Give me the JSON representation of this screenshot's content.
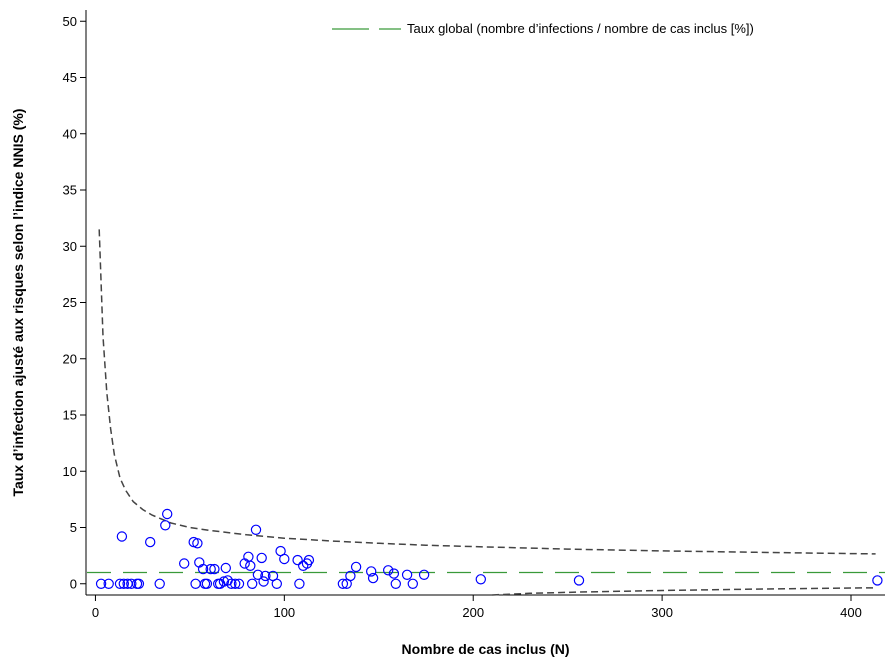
{
  "chart_data": {
    "type": "scatter",
    "title": "",
    "xlabel": "Nombre de cas inclus (N)",
    "ylabel": "Taux d’infection ajusté aux risques selon l’indice NNIS (%)",
    "xlim": [
      -5,
      418
    ],
    "ylim": [
      -1,
      51
    ],
    "xticks": [
      0,
      100,
      200,
      300,
      400
    ],
    "yticks": [
      0,
      5,
      10,
      15,
      20,
      25,
      30,
      35,
      40,
      45,
      50
    ],
    "grid": false,
    "legend_position": "top-right",
    "overall_rate": 1.0,
    "overall_rate_label": "Taux global (nombre d’infections / nombre de cas inclus [%])",
    "colors": {
      "points": "#0000ff",
      "overall": "#3a9a3a",
      "limits": "#444444",
      "axis": "#000000"
    },
    "upper_limit": [
      [
        2,
        31.5
      ],
      [
        4,
        22
      ],
      [
        6,
        17
      ],
      [
        8,
        13.8
      ],
      [
        10,
        11.5
      ],
      [
        13,
        9.4
      ],
      [
        16,
        8.3
      ],
      [
        20,
        7.3
      ],
      [
        25,
        6.6
      ],
      [
        30,
        6.1
      ],
      [
        40,
        5.4
      ],
      [
        50,
        5.0
      ],
      [
        60,
        4.75
      ],
      [
        80,
        4.35
      ],
      [
        100,
        4.05
      ],
      [
        125,
        3.8
      ],
      [
        150,
        3.6
      ],
      [
        175,
        3.43
      ],
      [
        200,
        3.3
      ],
      [
        250,
        3.08
      ],
      [
        300,
        2.92
      ],
      [
        350,
        2.8
      ],
      [
        400,
        2.68
      ],
      [
        413,
        2.65
      ]
    ],
    "lower_limit": [
      [
        210,
        -1
      ],
      [
        230,
        -0.85
      ],
      [
        260,
        -0.72
      ],
      [
        300,
        -0.6
      ],
      [
        350,
        -0.48
      ],
      [
        400,
        -0.38
      ],
      [
        413,
        -0.36
      ]
    ],
    "points": [
      [
        3,
        0
      ],
      [
        7,
        0
      ],
      [
        13,
        0
      ],
      [
        14,
        4.2
      ],
      [
        15,
        0
      ],
      [
        17,
        0
      ],
      [
        19,
        0
      ],
      [
        22,
        0
      ],
      [
        23,
        0
      ],
      [
        29,
        3.7
      ],
      [
        34,
        0
      ],
      [
        37,
        5.2
      ],
      [
        38,
        6.2
      ],
      [
        47,
        1.8
      ],
      [
        52,
        3.7
      ],
      [
        53,
        0
      ],
      [
        54,
        3.6
      ],
      [
        55,
        1.9
      ],
      [
        57,
        1.3
      ],
      [
        58,
        0
      ],
      [
        59,
        0
      ],
      [
        61,
        1.3
      ],
      [
        63,
        1.3
      ],
      [
        65,
        0
      ],
      [
        66,
        0
      ],
      [
        68,
        0.2
      ],
      [
        69,
        1.4
      ],
      [
        70,
        0.3
      ],
      [
        72,
        0
      ],
      [
        74,
        0
      ],
      [
        76,
        0
      ],
      [
        79,
        1.8
      ],
      [
        81,
        2.4
      ],
      [
        82,
        1.6
      ],
      [
        83,
        0
      ],
      [
        85,
        4.8
      ],
      [
        86,
        0.8
      ],
      [
        88,
        2.3
      ],
      [
        89,
        0.2
      ],
      [
        90,
        0.7
      ],
      [
        94,
        0.7
      ],
      [
        96,
        0
      ],
      [
        98,
        2.9
      ],
      [
        100,
        2.2
      ],
      [
        107,
        2.1
      ],
      [
        108,
        0
      ],
      [
        110,
        1.6
      ],
      [
        112,
        1.8
      ],
      [
        113,
        2.1
      ],
      [
        131,
        0
      ],
      [
        133,
        0
      ],
      [
        135,
        0.7
      ],
      [
        138,
        1.5
      ],
      [
        146,
        1.1
      ],
      [
        147,
        0.5
      ],
      [
        155,
        1.2
      ],
      [
        158,
        0.9
      ],
      [
        159,
        0
      ],
      [
        165,
        0.8
      ],
      [
        168,
        0
      ],
      [
        174,
        0.8
      ],
      [
        204,
        0.4
      ],
      [
        256,
        0.3
      ],
      [
        414,
        0.3
      ]
    ]
  }
}
